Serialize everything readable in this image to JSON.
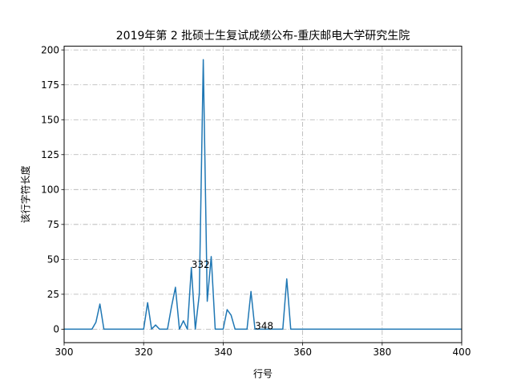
{
  "chart_data": {
    "type": "line",
    "title": "2019年第 2 批硕士生复试成绩公布-重庆邮电大学研究生院",
    "xlabel": "行号",
    "ylabel": "该行字符长度",
    "xlim": [
      300,
      400
    ],
    "ylim": [
      -9.65,
      202.65
    ],
    "grid": true,
    "x_ticks": [
      "300",
      "320",
      "340",
      "360",
      "380",
      "400"
    ],
    "y_ticks": [
      "0",
      "25",
      "50",
      "75",
      "100",
      "125",
      "150",
      "175",
      "200"
    ],
    "annotations": [
      {
        "text": "332",
        "x": 332,
        "y": 44
      },
      {
        "text": "348",
        "x": 348,
        "y": 0
      }
    ],
    "series": [
      {
        "color": "#1f77b4",
        "points": [
          [
            300,
            0
          ],
          [
            301,
            0
          ],
          [
            302,
            0
          ],
          [
            303,
            0
          ],
          [
            304,
            0
          ],
          [
            305,
            0
          ],
          [
            306,
            0
          ],
          [
            307,
            0
          ],
          [
            308,
            5
          ],
          [
            309,
            18
          ],
          [
            310,
            0
          ],
          [
            311,
            0
          ],
          [
            312,
            0
          ],
          [
            313,
            0
          ],
          [
            314,
            0
          ],
          [
            315,
            0
          ],
          [
            316,
            0
          ],
          [
            317,
            0
          ],
          [
            318,
            0
          ],
          [
            319,
            0
          ],
          [
            320,
            0
          ],
          [
            321,
            19
          ],
          [
            322,
            0
          ],
          [
            323,
            3
          ],
          [
            324,
            0
          ],
          [
            325,
            0
          ],
          [
            326,
            0
          ],
          [
            327,
            16
          ],
          [
            328,
            30
          ],
          [
            329,
            0
          ],
          [
            330,
            6
          ],
          [
            331,
            0
          ],
          [
            332,
            44
          ],
          [
            333,
            0
          ],
          [
            334,
            25
          ],
          [
            335,
            193
          ],
          [
            336,
            20
          ],
          [
            337,
            52
          ],
          [
            338,
            0
          ],
          [
            339,
            0
          ],
          [
            340,
            0
          ],
          [
            341,
            14
          ],
          [
            342,
            10
          ],
          [
            343,
            0
          ],
          [
            344,
            0
          ],
          [
            345,
            0
          ],
          [
            346,
            0
          ],
          [
            347,
            27
          ],
          [
            348,
            0
          ],
          [
            349,
            0
          ],
          [
            350,
            0
          ],
          [
            351,
            0
          ],
          [
            352,
            0
          ],
          [
            353,
            0
          ],
          [
            354,
            0
          ],
          [
            355,
            0
          ],
          [
            356,
            36
          ],
          [
            357,
            0
          ],
          [
            358,
            0
          ],
          [
            360,
            0
          ],
          [
            370,
            0
          ],
          [
            380,
            0
          ],
          [
            390,
            0
          ],
          [
            400,
            0
          ]
        ]
      }
    ]
  }
}
